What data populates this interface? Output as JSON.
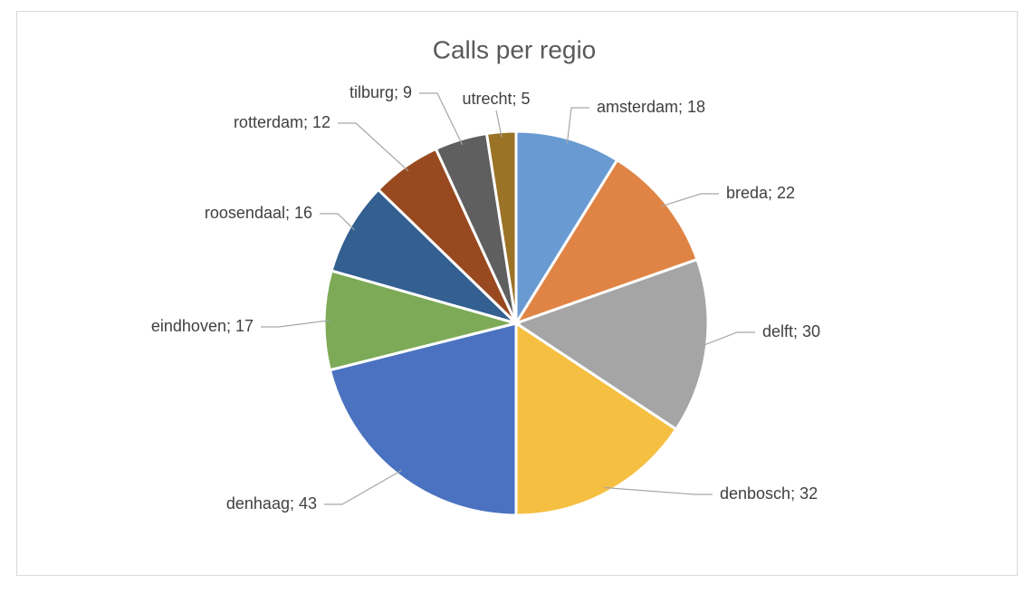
{
  "chart_data": {
    "type": "pie",
    "title": "Calls per regio",
    "values": [
      18,
      22,
      30,
      32,
      43,
      17,
      16,
      12,
      9,
      5
    ],
    "value_labels": [
      "amsterdam; 18",
      "breda; 22",
      "delft; 30",
      "denbosch; 32",
      "denhaag; 43",
      "eindhoven; 17",
      "roosendaal; 16",
      "rotterdam; 12",
      "tilburg; 9",
      "utrecht; 5"
    ],
    "colors": [
      "#699bd2",
      "#e08445",
      "#a5a5a5",
      "#f5c042",
      "#4a72c0",
      "#7daa57",
      "#335f91",
      "#98491f",
      "#5f5f5f",
      "#9a7327"
    ]
  }
}
